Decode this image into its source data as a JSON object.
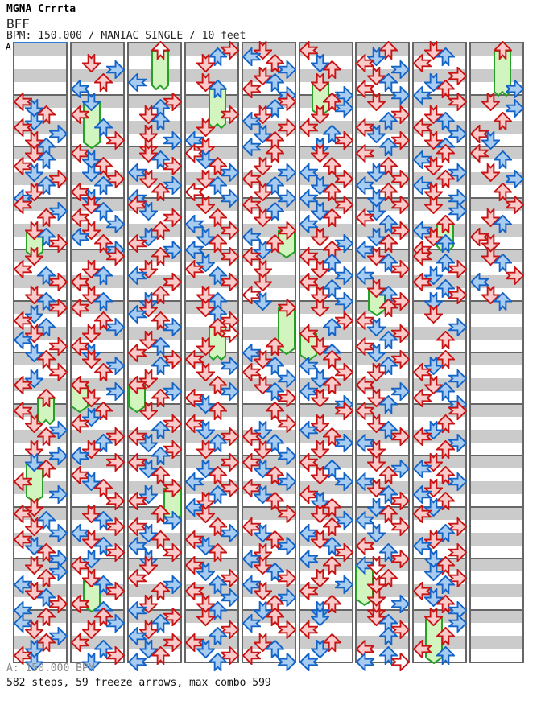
{
  "header": {
    "title": "MGNA Crrrta",
    "song": "BFF",
    "info": "BPM: 150.000 / MANIAC SINGLE / 10 feet"
  },
  "section_label": "A",
  "footer": {
    "bpm_line": "A: 150.000 BPM",
    "stats_line": "582 steps, 59 freeze arrows, max combo 599"
  },
  "chart_data": {
    "type": "step_chart",
    "bpm": 150.0,
    "mode": "MANIAC SINGLE",
    "difficulty_feet": 10,
    "steps": 582,
    "freeze_arrows": 59,
    "max_combo": 599,
    "columns": 9,
    "measures_per_column": 12,
    "rows_per_measure": 8,
    "lanes": [
      "L",
      "D",
      "U",
      "R"
    ],
    "note_format": "lane(L/D/U/R) + row(0-7) + color(r=red/pink 4th, w=red/white 16th, b=blue 8th) + optional fN=freeze body N rows",
    "colors": {
      "red_stroke": "#c81414",
      "pink_fill": "#f8caca",
      "white_fill": "#ffffff",
      "blue_stroke": "#1464c8",
      "blue_fill": "#a8ccf0",
      "green_stroke": "#28a028",
      "green_fill": "#d2f5c0",
      "stripe_gray": "#cbcbcb",
      "grid_border": "#666666",
      "section_line_blue": "#2d7dd2"
    },
    "notes": [
      [
        "",
        "L0r D1b U2r D3b L4r R5b D6r U7b",
        "D0r U1b L2r D3b R4r U5b D6r L7b",
        "L0r R1b U2r D4rf3 U5b R6r",
        "D0r L2r U3b R4r D6r U7b",
        "R0r D1b L2r U3b D4r L5b R6r D7b",
        "U0r R2r D3b L4r U6rf3",
        "L0r D2r R3b U4r D6r R7b",
        "D0bf5 U1r L3r R5b D7r",
        "L0r U1b D2r R3b L4r D5b U6r R7b",
        "D0r R1b U2r L3b D4r U5b R6r L7b",
        "U0r L1b D2r R3b U4r D5b L6r D7b"
      ],
      [
        "D2r R3b U5r L6b",
        "D0bf6 L2r U4b R6r",
        "L0r D1b U2r D3b R4r U5b L6r D7b",
        "D0r U1b L2r R3b D4r L5b U6r R7b",
        "R0r D2r U3b L4r D6r U7b",
        "L0r U2r R3b D4r L6r D7b",
        "D0r R1b U2r L4rf3 R5b D6r",
        "U0r D1b L2r R4r U5b D6r L7b",
        "R0r L2r D3b U4r R6r",
        "D0r U1b R2r L3b D4r U5b R6r D7b",
        "L0r D2rf4 U3b R4r L6r U7b",
        "U0r R1b D2r L4r U5b R6r D7b"
      ],
      [
        "U0wf5 L5b",
        "R0r U1b D2r U3b D5r R6b D7r",
        "D0r U1b R2r L3b D4r R5b U6r L7b",
        "L0r D1b R2r U4r D5b L6r R7b",
        "U0r D2r L3b R4r U6r D7b",
        "D0r L1b U2r R3b D5r U6b L7r",
        "R0r U1b D3r L4rf3 R5b U6r",
        "D0r R2r U3b L4r D5b R6r U7b",
        "L0r D1b U2r R4rf4 D5b L6r",
        "U0r R1b L2r D3b U4r L5b R6r D7b",
        "D0r L2r R3b U4r D6r L7b",
        "R0r U1b D2r L3b R4r D5b U6r L7b"
      ],
      [
        "R0r U1b D2r D5r U6bf5",
        "R2r D4r L6b D7r",
        "L0w D1b U2r R3b D4r U5b L6w R7b",
        "D0r U2r L3b R4r D5b U6r L7b",
        "R0r D1b L2r U3b R4r D6r U7b",
        "D0r U1b R2r U3rf4 R4w D6r",
        "L0r R1b D2r U4r R5b L6r D7b",
        "U0r L2r D3b R4r U5b D6r",
        "R0r D1b U2r L3b R4r U5b D6r L7b",
        "D0r U2r R3b L4r D5b U6r",
        "L0r D1b R2r U3b L4r R5b D6r U7b",
        "D0r R2r U3b L4r D5b R6r U7b"
      ],
      [
        "D0r L1b U2r R3b D4r U5b L6r R7b",
        "R0r U1b D2r L3b R4r D5b U6r L7b",
        "U0r D2r R3b L4r U5b D6r R7b",
        "L0r U1b D2r R4rf3 L5b U6r D7b",
        "L0r D2r D4r L6w D7b",
        "R0rf6 U6r L7b",
        "D0r U1b L2r R3b D4r U5b R6r",
        "U0r R2r D3b L4r U5b D6r R7b",
        "L0r D1b U2r R3b L4r D5b U6r",
        "R0r L2r D3b U4r R5b D6r L7b",
        "D0r U1b R2r L3b D4r R5b U6r D7b",
        "U0r L1b R2r D4r U5b L6r R7b"
      ],
      [
        "L0r D2b U3r D5rf4 R7b",
        "U0r R1b D2r L4r U5b R6r D7b",
        "D0r U2r L3b R4r D5b U6r L7b",
        "R0r D1b U2r L3b D5r R6b U7r",
        "L0r U1b D2r R3b L4r U5b D6r R7b",
        "D0r R2r U3b L4rf3 D6r U7b",
        "U0r L1b R2r D3b U4r L5b D6r R7b",
        "R0r D2r L3b U4r R5b D6r",
        "L0r U1b D2r R3b L5r D6b U7r",
        "D0r R1b U2r L3b D4r U5b R6r L7b",
        "U0r D2r R3b L4r U6r D7b",
        "D0b L2r U4r D5b L7b"
      ],
      [
        "U0r D1b L2r R3b D4r U5b L6r R7b",
        "D0r R2r U3b L4r D5b R6r U7b",
        "L0r U2r D3b R4r L5b U6r D7b",
        "R0r D1b L2r U3b R4r D5b U6r L7b",
        "D0r U1b R2r L3b D5rf3 U6b R7r",
        "U0r L2r D3b R4r U5b L6r D7b",
        "R0r U1b D2r L4r R5b D6r U7b",
        "L0r D2r U3b R4r L5b D6r",
        "D0r R1b U2r L3b D4r U5b R6r D7b",
        "U0r L1b R2r D3b L5r U6b R7r",
        "L0bf5 D0w U2r D3r D5r R6b D7r",
        "D0r U1b R2r U3b L5r U6b R7w L7b"
      ],
      [
        "D0r U1b L2r R4r D5b U6r L7b",
        "R0r D2r U3b L4r R5b D6r U7b",
        "U0r L1b D2r R3b U4r L5b D6r R7b",
        "D0r R1b U3rf3 L4b D5r U6b L7r",
        "L0r U1b R2r D3b L4r U5b R6r D7b",
        "D1r R3b U5r",
        "U0r D1b L2r R3b D4r U5b L6r R7b",
        "R0r U2r D3b L4r R5b U6r",
        "D0r L1b U2r R3b D4r L5b U6r D7b",
        "L0r R2r U3b D4r L5b R6r D7b",
        "U0r D1b R2r U3b L4r D5b U6r R7b",
        "D0rf6 R1b U3r L5r U6b"
      ],
      [
        "U0rf6 R6b",
        "D0r R1b U3r L5r D6b",
        "L0r U1b D3r R4b U6r",
        "R0r D2r U3b L5r D6r",
        "D0r U1b R3r L4b D6r U7b",
        "",
        "",
        "",
        "",
        "",
        "",
        ""
      ]
    ]
  }
}
